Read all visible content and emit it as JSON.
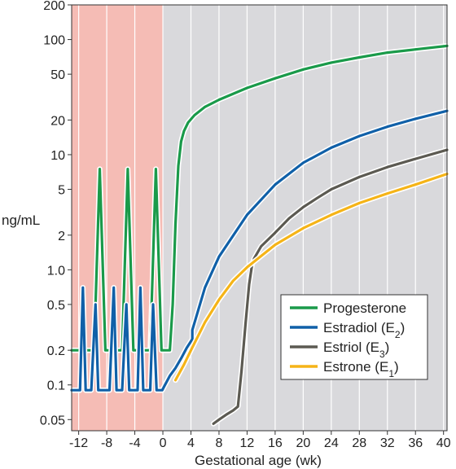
{
  "chart_data": {
    "type": "line",
    "title": "",
    "xlabel": "Gestational age (wk)",
    "ylabel": "ng/mL",
    "yscale": "log",
    "xlim": [
      -13,
      40.5
    ],
    "ylim": [
      0.04,
      200
    ],
    "xticks": [
      -12,
      -8,
      -4,
      0,
      4,
      8,
      12,
      16,
      20,
      24,
      28,
      32,
      36,
      40
    ],
    "xtick_labels": [
      "-12",
      "-8",
      "-4",
      "0",
      "4",
      "8",
      "12",
      "16",
      "20",
      "24",
      "28",
      "32",
      "36",
      "40"
    ],
    "yticks": [
      0.05,
      0.1,
      0.2,
      0.5,
      1.0,
      2,
      5,
      10,
      20,
      50,
      100,
      200
    ],
    "ytick_labels": [
      "0.05",
      "0.1",
      "0.2",
      "0.5",
      "1.0",
      "2",
      "5",
      "10",
      "20",
      "50",
      "100",
      "200"
    ],
    "grid": "vertical",
    "legend_position": "bottom-right",
    "regions": [
      {
        "x_from": -13,
        "x_to": 0,
        "color": "#f5bcb5"
      },
      {
        "x_from": 0,
        "x_to": 40.5,
        "color": "#d9d9dc"
      }
    ],
    "series": [
      {
        "name": "Progesterone",
        "legend_main": "Progesterone",
        "legend_sub": "",
        "legend_tail": "",
        "color": "#1a9a4a",
        "x": [
          -13,
          -12.2,
          -11.4,
          -10.6,
          -9.8,
          -9.0,
          -8.2,
          -7.4,
          -6.6,
          -5.8,
          -5.0,
          -4.2,
          -3.4,
          -2.6,
          -1.8,
          -1.0,
          -0.2,
          0.2,
          0.6,
          0.8,
          1.0,
          1.4,
          1.8,
          2.2,
          2.6,
          3.0,
          3.6,
          4.5,
          6,
          8,
          12,
          16,
          20,
          24,
          28,
          32,
          36,
          40.5
        ],
        "y": [
          0.2,
          0.2,
          0.2,
          0.2,
          0.2,
          7.5,
          0.2,
          0.2,
          0.2,
          0.2,
          7.5,
          0.2,
          0.2,
          0.2,
          0.2,
          7.5,
          0.2,
          0.2,
          0.2,
          0.2,
          0.2,
          0.5,
          2.5,
          8,
          13,
          16,
          19,
          22,
          26,
          30,
          38,
          46,
          55,
          63,
          70,
          77,
          82,
          88
        ]
      },
      {
        "name": "Estradiol (E2)",
        "legend_main": "Estradiol (E",
        "legend_sub": "2",
        "legend_tail": ")",
        "color": "#1060a8",
        "x": [
          -13,
          -12.4,
          -11.8,
          -11.4,
          -11.0,
          -10.2,
          -9.6,
          -9.2,
          -8.9,
          -7.6,
          -7.0,
          -6.6,
          -5.8,
          -5.2,
          -4.8,
          -4.4,
          -3.6,
          -3.2,
          -2.8,
          -1.8,
          -1.4,
          -0.9,
          -0.4,
          -0.1,
          0.3,
          1.0,
          1.8,
          2.6,
          3.4,
          4.2,
          4.2,
          6,
          8,
          12,
          16,
          20,
          24,
          28,
          32,
          36,
          40.5
        ],
        "y": [
          0.09,
          0.09,
          0.09,
          0.7,
          0.09,
          0.09,
          0.5,
          0.09,
          0.09,
          0.09,
          0.7,
          0.09,
          0.09,
          0.5,
          0.09,
          0.09,
          0.09,
          0.7,
          0.09,
          0.09,
          0.5,
          0.09,
          0.09,
          0.09,
          0.1,
          0.12,
          0.14,
          0.17,
          0.21,
          0.25,
          0.3,
          0.7,
          1.3,
          3,
          5.5,
          8.5,
          11.5,
          14.5,
          17.5,
          20.5,
          24
        ]
      },
      {
        "name": "Estriol (E3)",
        "legend_main": "Estriol (E",
        "legend_sub": "3",
        "legend_tail": ")",
        "color": "#5c5a52",
        "x": [
          7.2,
          8,
          9,
          10,
          10.7,
          11.2,
          11.8,
          12.3,
          12.7,
          13,
          14,
          16,
          18,
          20,
          22,
          24,
          28,
          32,
          36,
          40.5
        ],
        "y": [
          0.046,
          0.05,
          0.055,
          0.06,
          0.065,
          0.13,
          0.35,
          0.75,
          1.1,
          1.25,
          1.6,
          2.1,
          2.8,
          3.5,
          4.2,
          5,
          6.4,
          7.8,
          9.2,
          11
        ]
      },
      {
        "name": "Estrone (E1)",
        "legend_main": "Estrone (E",
        "legend_sub": "1",
        "legend_tail": ")",
        "color": "#f5b418",
        "x": [
          1.8,
          3,
          4,
          6,
          8,
          10,
          12,
          16,
          20,
          24,
          28,
          32,
          36,
          40.5
        ],
        "y": [
          0.11,
          0.15,
          0.2,
          0.35,
          0.55,
          0.8,
          1.05,
          1.65,
          2.3,
          3,
          3.8,
          4.6,
          5.5,
          6.8
        ]
      }
    ]
  }
}
